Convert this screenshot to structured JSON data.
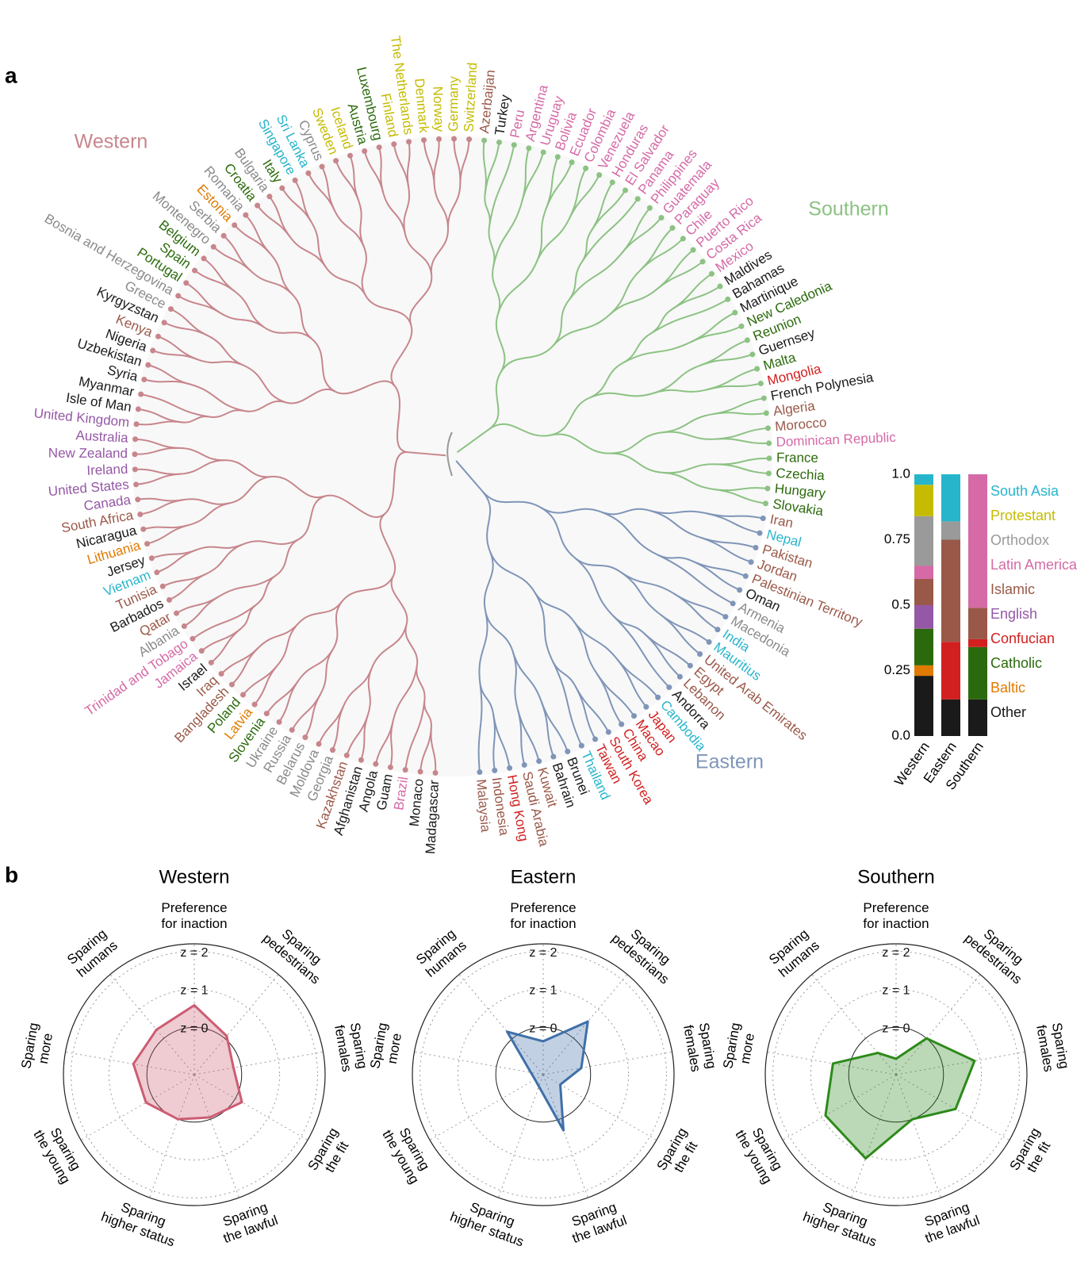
{
  "panel_labels": [
    "a",
    "b"
  ],
  "chart_data": [
    {
      "type": "dendrogram",
      "clusters": [
        {
          "name": "Western",
          "color": "#c7868c",
          "leaves": [
            {
              "name": "Madagascar",
              "color": "#1a1a1a"
            },
            {
              "name": "Monaco",
              "color": "#1a1a1a"
            },
            {
              "name": "Brazil",
              "color": "#d56aa6"
            },
            {
              "name": "Guam",
              "color": "#1a1a1a"
            },
            {
              "name": "Angola",
              "color": "#1a1a1a"
            },
            {
              "name": "Afghanistan",
              "color": "#1a1a1a"
            },
            {
              "name": "Kazakhstan",
              "color": "#9a5848"
            },
            {
              "name": "Georgia",
              "color": "#8a8a8a"
            },
            {
              "name": "Moldova",
              "color": "#8a8a8a"
            },
            {
              "name": "Belarus",
              "color": "#8a8a8a"
            },
            {
              "name": "Russia",
              "color": "#8a8a8a"
            },
            {
              "name": "Ukraine",
              "color": "#8a8a8a"
            },
            {
              "name": "Slovenia",
              "color": "#2b6a0c"
            },
            {
              "name": "Latvia",
              "color": "#e07a00"
            },
            {
              "name": "Poland",
              "color": "#2b6a0c"
            },
            {
              "name": "Bangladesh",
              "color": "#9a5848"
            },
            {
              "name": "Iraq",
              "color": "#9a5848"
            },
            {
              "name": "Israel",
              "color": "#1a1a1a"
            },
            {
              "name": "Jamaica",
              "color": "#d56aa6"
            },
            {
              "name": "Trinidad and Tobago",
              "color": "#d56aa6"
            },
            {
              "name": "Albania",
              "color": "#8a8a8a"
            },
            {
              "name": "Qatar",
              "color": "#9a5848"
            },
            {
              "name": "Barbados",
              "color": "#1a1a1a"
            },
            {
              "name": "Tunisia",
              "color": "#9a5848"
            },
            {
              "name": "Vietnam",
              "color": "#27b5cc"
            },
            {
              "name": "Jersey",
              "color": "#1a1a1a"
            },
            {
              "name": "Lithuania",
              "color": "#e07a00"
            },
            {
              "name": "Nicaragua",
              "color": "#1a1a1a"
            },
            {
              "name": "South Africa",
              "color": "#9a5848"
            },
            {
              "name": "Canada",
              "color": "#9558a6"
            },
            {
              "name": "United States",
              "color": "#9558a6"
            },
            {
              "name": "Ireland",
              "color": "#9558a6"
            },
            {
              "name": "New Zealand",
              "color": "#9558a6"
            },
            {
              "name": "Australia",
              "color": "#9558a6"
            },
            {
              "name": "United Kingdom",
              "color": "#9558a6"
            },
            {
              "name": "Isle of Man",
              "color": "#1a1a1a"
            },
            {
              "name": "Myanmar",
              "color": "#1a1a1a"
            },
            {
              "name": "Syria",
              "color": "#1a1a1a"
            },
            {
              "name": "Uzbekistan",
              "color": "#1a1a1a"
            },
            {
              "name": "Nigeria",
              "color": "#1a1a1a"
            },
            {
              "name": "Kenya",
              "color": "#9a5848"
            },
            {
              "name": "Kyrgyzstan",
              "color": "#1a1a1a"
            },
            {
              "name": "Greece",
              "color": "#8a8a8a"
            },
            {
              "name": "Bosnia and Herzegovina",
              "color": "#8a8a8a"
            },
            {
              "name": "Portugal",
              "color": "#2b6a0c"
            },
            {
              "name": "Spain",
              "color": "#2b6a0c"
            },
            {
              "name": "Belgium",
              "color": "#2b6a0c"
            },
            {
              "name": "Montenegro",
              "color": "#8a8a8a"
            },
            {
              "name": "Serbia",
              "color": "#8a8a8a"
            },
            {
              "name": "Estonia",
              "color": "#e07a00"
            },
            {
              "name": "Romania",
              "color": "#8a8a8a"
            },
            {
              "name": "Croatia",
              "color": "#2b6a0c"
            },
            {
              "name": "Bulgaria",
              "color": "#8a8a8a"
            },
            {
              "name": "Italy",
              "color": "#2b6a0c"
            },
            {
              "name": "Singapore",
              "color": "#27b5cc"
            },
            {
              "name": "Sri Lanka",
              "color": "#27b5cc"
            },
            {
              "name": "Cyprus",
              "color": "#8a8a8a"
            },
            {
              "name": "Sweden",
              "color": "#c5bb00"
            },
            {
              "name": "Iceland",
              "color": "#c5bb00"
            },
            {
              "name": "Austria",
              "color": "#2b6a0c"
            },
            {
              "name": "Luxembourg",
              "color": "#2b6a0c"
            },
            {
              "name": "Finland",
              "color": "#c5bb00"
            },
            {
              "name": "The Netherlands",
              "color": "#c5bb00"
            },
            {
              "name": "Denmark",
              "color": "#c5bb00"
            },
            {
              "name": "Norway",
              "color": "#c5bb00"
            },
            {
              "name": "Germany",
              "color": "#c5bb00"
            },
            {
              "name": "Switzerland",
              "color": "#c5bb00"
            }
          ]
        },
        {
          "name": "Southern",
          "color": "#8cc283",
          "leaves": [
            {
              "name": "Azerbaijan",
              "color": "#9a5848"
            },
            {
              "name": "Turkey",
              "color": "#1a1a1a"
            },
            {
              "name": "Peru",
              "color": "#d56aa6"
            },
            {
              "name": "Argentina",
              "color": "#d56aa6"
            },
            {
              "name": "Uruguay",
              "color": "#d56aa6"
            },
            {
              "name": "Bolivia",
              "color": "#d56aa6"
            },
            {
              "name": "Ecuador",
              "color": "#d56aa6"
            },
            {
              "name": "Colombia",
              "color": "#d56aa6"
            },
            {
              "name": "Venezuela",
              "color": "#d56aa6"
            },
            {
              "name": "Honduras",
              "color": "#d56aa6"
            },
            {
              "name": "El Salvador",
              "color": "#d56aa6"
            },
            {
              "name": "Panama",
              "color": "#d56aa6"
            },
            {
              "name": "Philippines",
              "color": "#d56aa6"
            },
            {
              "name": "Guatemala",
              "color": "#d56aa6"
            },
            {
              "name": "Paraguay",
              "color": "#d56aa6"
            },
            {
              "name": "Chile",
              "color": "#d56aa6"
            },
            {
              "name": "Puerto Rico",
              "color": "#d56aa6"
            },
            {
              "name": "Costa Rica",
              "color": "#d56aa6"
            },
            {
              "name": "Mexico",
              "color": "#d56aa6"
            },
            {
              "name": "Maldives",
              "color": "#1a1a1a"
            },
            {
              "name": "Bahamas",
              "color": "#1a1a1a"
            },
            {
              "name": "Martinique",
              "color": "#1a1a1a"
            },
            {
              "name": "New Caledonia",
              "color": "#2b6a0c"
            },
            {
              "name": "Reunion",
              "color": "#2b6a0c"
            },
            {
              "name": "Guernsey",
              "color": "#1a1a1a"
            },
            {
              "name": "Malta",
              "color": "#2b6a0c"
            },
            {
              "name": "Mongolia",
              "color": "#d21f1f"
            },
            {
              "name": "French Polynesia",
              "color": "#1a1a1a"
            },
            {
              "name": "Algeria",
              "color": "#9a5848"
            },
            {
              "name": "Morocco",
              "color": "#9a5848"
            },
            {
              "name": "Dominican Republic",
              "color": "#d56aa6"
            },
            {
              "name": "France",
              "color": "#2b6a0c"
            },
            {
              "name": "Czechia",
              "color": "#2b6a0c"
            },
            {
              "name": "Hungary",
              "color": "#2b6a0c"
            },
            {
              "name": "Slovakia",
              "color": "#2b6a0c"
            }
          ]
        },
        {
          "name": "Eastern",
          "color": "#7f95b8",
          "leaves": [
            {
              "name": "Iran",
              "color": "#9a5848"
            },
            {
              "name": "Nepal",
              "color": "#27b5cc"
            },
            {
              "name": "Pakistan",
              "color": "#9a5848"
            },
            {
              "name": "Jordan",
              "color": "#9a5848"
            },
            {
              "name": "Palestinian Territory",
              "color": "#9a5848"
            },
            {
              "name": "Oman",
              "color": "#1a1a1a"
            },
            {
              "name": "Armenia",
              "color": "#8a8a8a"
            },
            {
              "name": "Macedonia",
              "color": "#8a8a8a"
            },
            {
              "name": "India",
              "color": "#27b5cc"
            },
            {
              "name": "Mauritius",
              "color": "#27b5cc"
            },
            {
              "name": "United Arab Emirates",
              "color": "#9a5848"
            },
            {
              "name": "Egypt",
              "color": "#9a5848"
            },
            {
              "name": "Lebanon",
              "color": "#9a5848"
            },
            {
              "name": "Andorra",
              "color": "#1a1a1a"
            },
            {
              "name": "Cambodia",
              "color": "#27b5cc"
            },
            {
              "name": "Japan",
              "color": "#d21f1f"
            },
            {
              "name": "Macao",
              "color": "#d21f1f"
            },
            {
              "name": "China",
              "color": "#d21f1f"
            },
            {
              "name": "South Korea",
              "color": "#d21f1f"
            },
            {
              "name": "Taiwan",
              "color": "#d21f1f"
            },
            {
              "name": "Thailand",
              "color": "#27b5cc"
            },
            {
              "name": "Brunei",
              "color": "#1a1a1a"
            },
            {
              "name": "Bahrain",
              "color": "#1a1a1a"
            },
            {
              "name": "Kuwait",
              "color": "#9a5848"
            },
            {
              "name": "Saudi Arabia",
              "color": "#9a5848"
            },
            {
              "name": "Hong Kong",
              "color": "#d21f1f"
            },
            {
              "name": "Indonesia",
              "color": "#9a5848"
            },
            {
              "name": "Malaysia",
              "color": "#9a5848"
            }
          ]
        }
      ]
    },
    {
      "type": "bar",
      "stacked": true,
      "categories": [
        "Western",
        "Eastern",
        "Southern"
      ],
      "series": [
        {
          "name": "South Asia",
          "color": "#27b5cc",
          "values": [
            0.04,
            0.18,
            0
          ]
        },
        {
          "name": "Protestant",
          "color": "#c5bb00",
          "values": [
            0.12,
            0,
            0
          ]
        },
        {
          "name": "Orthodox",
          "color": "#9a9a9a",
          "values": [
            0.19,
            0.07,
            0
          ]
        },
        {
          "name": "Latin America",
          "color": "#d56aa6",
          "values": [
            0.05,
            0,
            0.51
          ]
        },
        {
          "name": "Islamic",
          "color": "#9a5848",
          "values": [
            0.1,
            0.39,
            0.12
          ]
        },
        {
          "name": "English",
          "color": "#9558a6",
          "values": [
            0.09,
            0,
            0
          ]
        },
        {
          "name": "Confucian",
          "color": "#d21f1f",
          "values": [
            0,
            0.22,
            0.03
          ]
        },
        {
          "name": "Catholic",
          "color": "#2b6a0c",
          "values": [
            0.14,
            0,
            0.2
          ]
        },
        {
          "name": "Baltic",
          "color": "#e07a00",
          "values": [
            0.04,
            0,
            0
          ]
        },
        {
          "name": "Other",
          "color": "#1a1a1a",
          "values": [
            0.23,
            0.14,
            0.14
          ]
        }
      ],
      "ylim": [
        0,
        1
      ],
      "yticks": [
        {
          "value": 0,
          "label": "0.0"
        },
        0.25,
        0.5,
        0.75,
        {
          "value": 1,
          "label": "1.0"
        }
      ]
    },
    {
      "type": "radar",
      "title": "Western",
      "color": "#cc5d72",
      "axes": [
        [
          "Preference",
          "for inaction"
        ],
        [
          "Sparing",
          "pedestrians"
        ],
        [
          "Sparing",
          "females"
        ],
        [
          "Sparing",
          "the fit"
        ],
        [
          "Sparing",
          "the lawful"
        ],
        [
          "Sparing",
          "higher status"
        ],
        [
          "Sparing",
          "the young"
        ],
        [
          "Sparing",
          "more"
        ],
        [
          "Sparing",
          "humans"
        ]
      ],
      "values": [
        0.58,
        0.08,
        -0.2,
        0.2,
        -0.05,
        0,
        0.22,
        0.38,
        0.3
      ],
      "rlim": [
        -1.25,
        2.2
      ],
      "rticks": [
        {
          "value": 0,
          "label": "z = 0"
        },
        {
          "value": 1,
          "label": "z = 1"
        },
        {
          "value": 2,
          "label": "z = 2"
        }
      ]
    },
    {
      "type": "radar",
      "title": "Eastern",
      "color": "#3f6fa8",
      "axes": [
        [
          "Preference",
          "for inaction"
        ],
        [
          "Sparing",
          "pedestrians"
        ],
        [
          "Sparing",
          "females"
        ],
        [
          "Sparing",
          "the fit"
        ],
        [
          "Sparing",
          "the lawful"
        ],
        [
          "Sparing",
          "higher status"
        ],
        [
          "Sparing",
          "the young"
        ],
        [
          "Sparing",
          "more"
        ],
        [
          "Sparing",
          "humans"
        ]
      ],
      "values": [
        -0.37,
        0.58,
        -0.23,
        -0.73,
        0.31,
        -0.92,
        -1.0,
        -0.92,
        0.23
      ],
      "rlim": [
        -1.25,
        2.2
      ],
      "rticks": [
        {
          "value": 0,
          "label": "z = 0"
        },
        {
          "value": 1,
          "label": "z = 1"
        },
        {
          "value": 2,
          "label": "z = 2"
        }
      ]
    },
    {
      "type": "radar",
      "title": "Southern",
      "color": "#2d8a1b",
      "axes": [
        [
          "Preference",
          "for inaction"
        ],
        [
          "Sparing",
          "pedestrians"
        ],
        [
          "Sparing",
          "females"
        ],
        [
          "Sparing",
          "the fit"
        ],
        [
          "Sparing",
          "the lawful"
        ],
        [
          "Sparing",
          "higher status"
        ],
        [
          "Sparing",
          "the young"
        ],
        [
          "Sparing",
          "more"
        ],
        [
          "Sparing",
          "humans"
        ]
      ],
      "values": [
        -0.83,
        0,
        0.85,
        0.56,
        0,
        1.1,
        0.9,
        0.44,
        -0.5
      ],
      "rlim": [
        -1.25,
        2.2
      ],
      "rticks": [
        {
          "value": 0,
          "label": "z = 0"
        },
        {
          "value": 1,
          "label": "z = 1"
        },
        {
          "value": 2,
          "label": "z = 2"
        }
      ]
    }
  ]
}
